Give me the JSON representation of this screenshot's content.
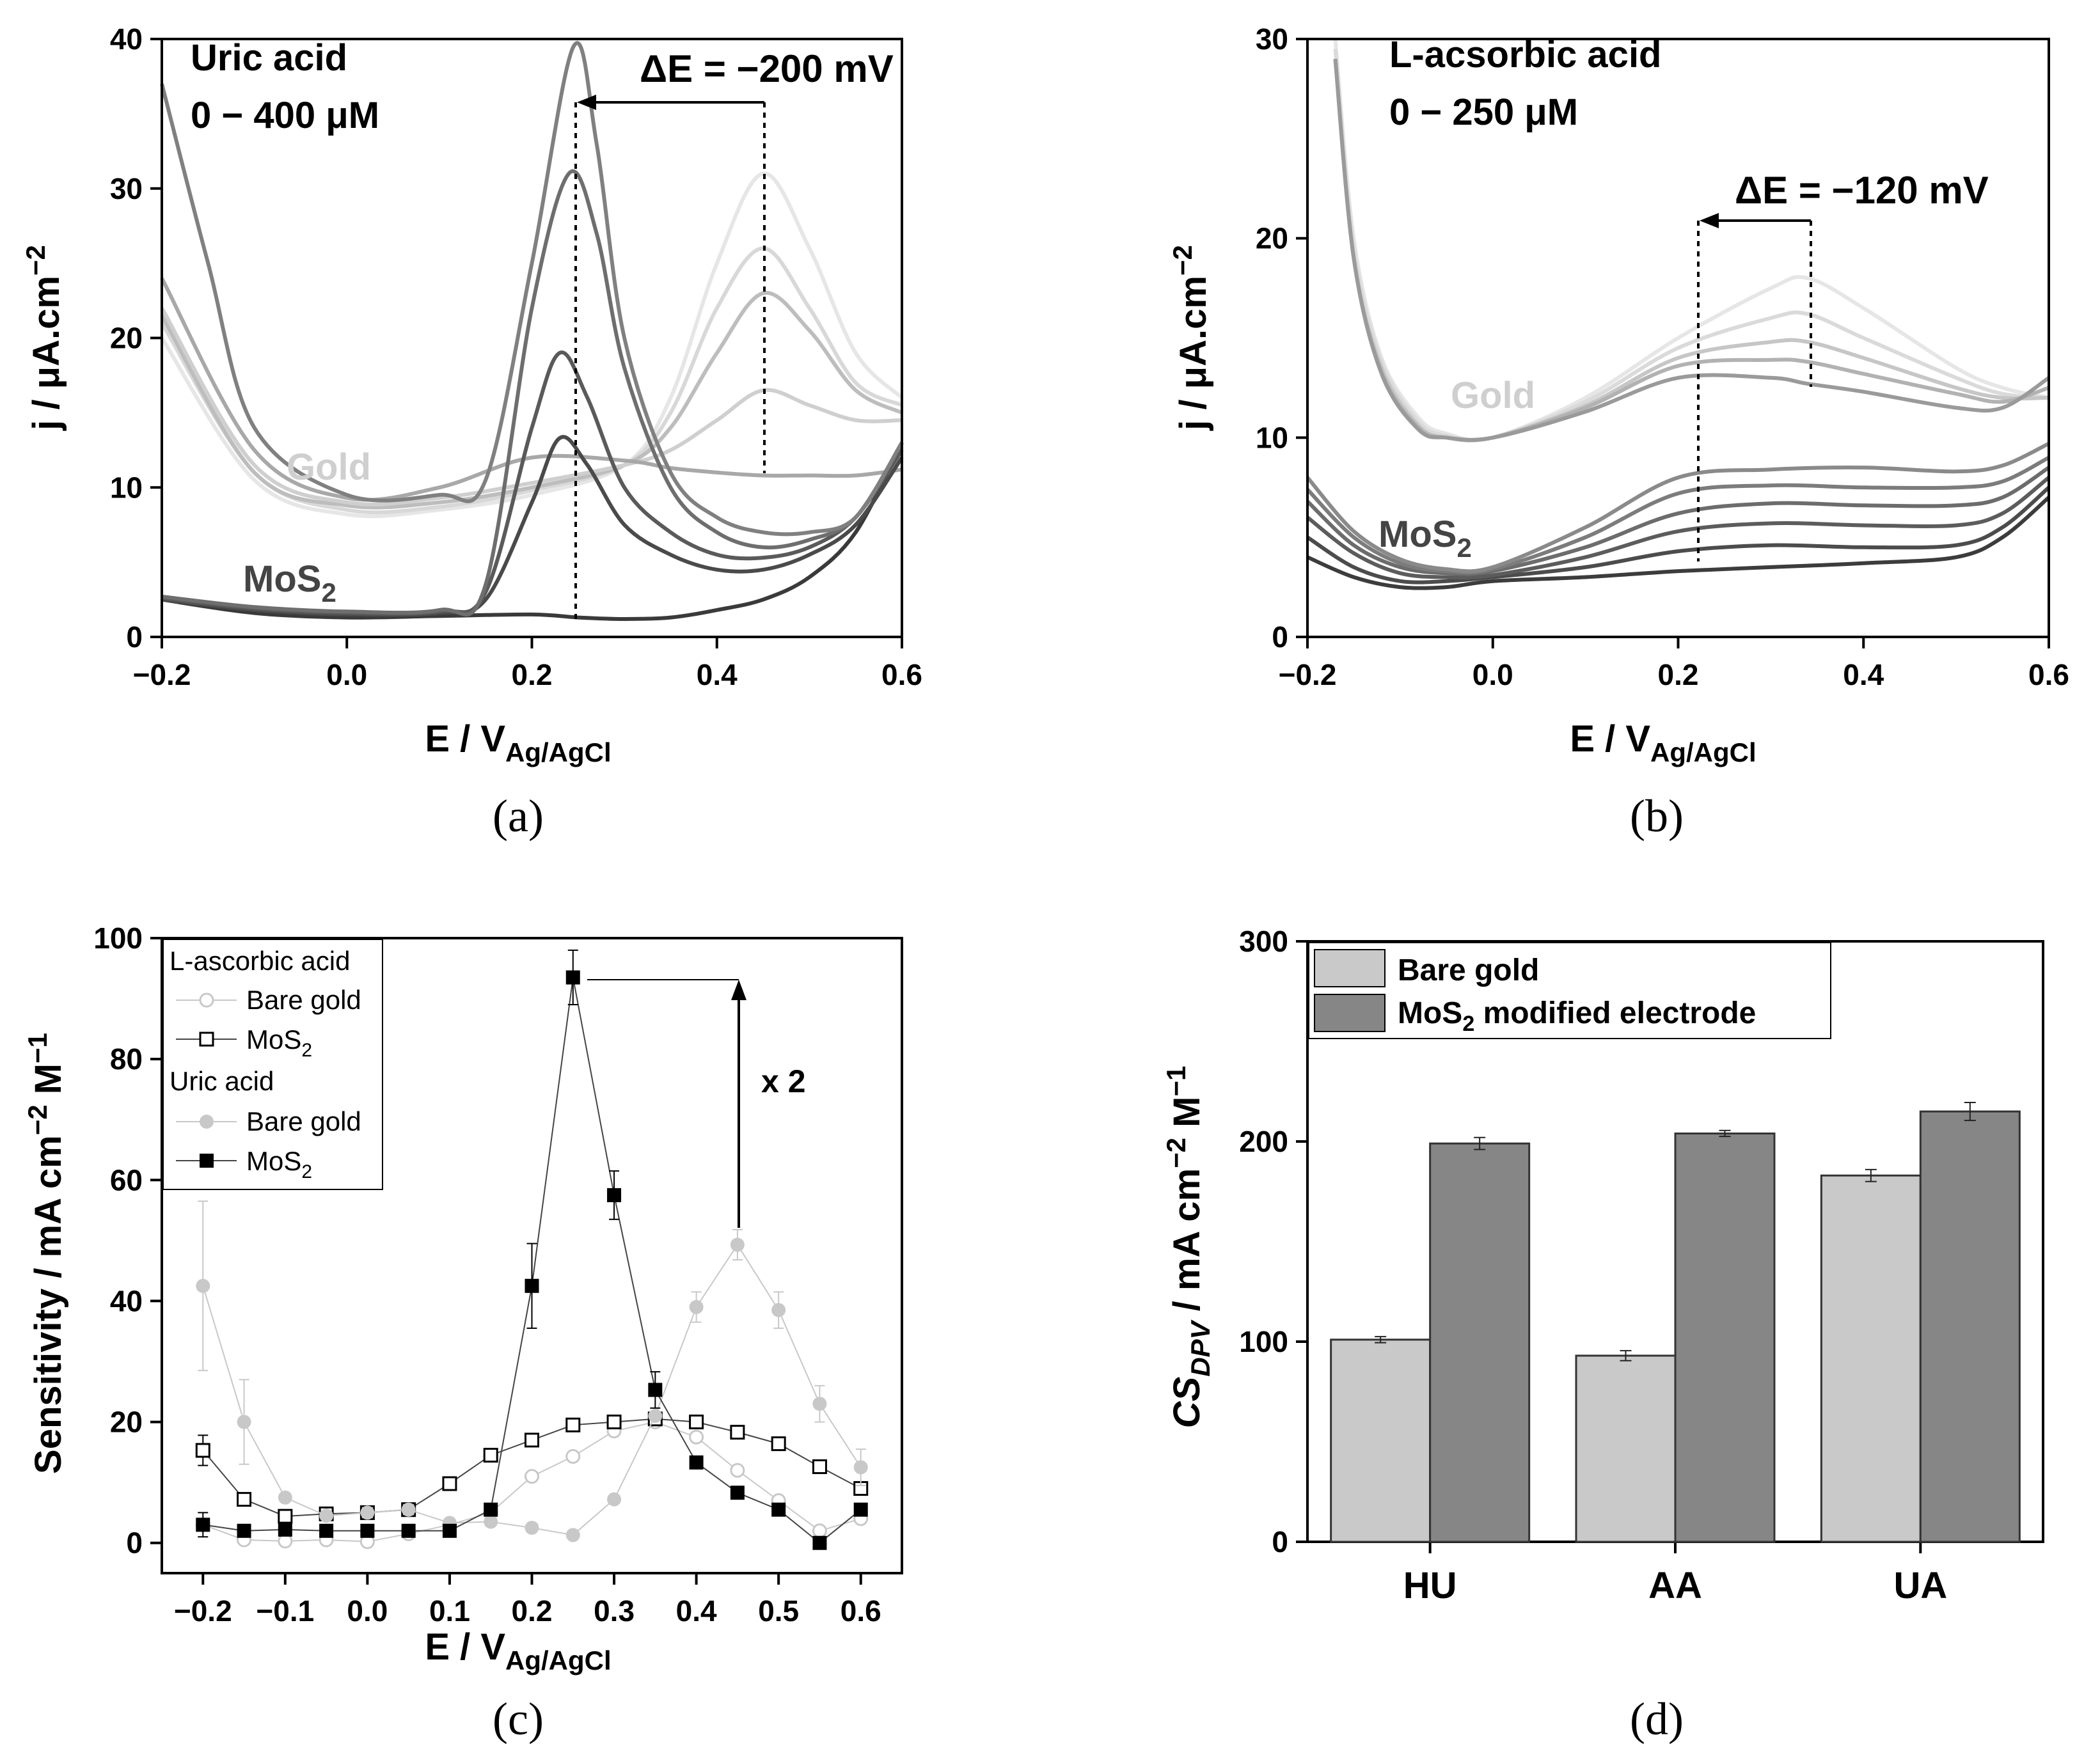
{
  "chart_data": [
    {
      "panel": "(a)",
      "type": "line",
      "ylabel": "j / μA.cm",
      "ylabel_sup": "−2",
      "xlabel": "E / V",
      "xlabel_sub": "Ag/AgCl",
      "xlim": [
        -0.2,
        0.6
      ],
      "ylim": [
        0,
        40
      ],
      "xticks": [
        "−0.2",
        "0.0",
        "0.2",
        "0.4",
        "0.6"
      ],
      "yticks": [
        "0",
        "10",
        "20",
        "30",
        "40"
      ],
      "annotations": {
        "analyte": "Uric acid",
        "range": "0 − 400 μM",
        "delta": "ΔE = −200 mV",
        "gold": "Gold",
        "mos2": "MoS",
        "mos2_sub": "2"
      },
      "series": [
        {
          "name": "Gold 1",
          "group": "gold",
          "color": "#e6e6e6",
          "x": [
            -0.2,
            -0.1,
            0.0,
            0.1,
            0.2,
            0.3,
            0.35,
            0.4,
            0.45,
            0.5,
            0.55,
            0.6
          ],
          "y": [
            20,
            10.5,
            8.2,
            8.5,
            9.5,
            11.5,
            16,
            25,
            31,
            26,
            19,
            16
          ]
        },
        {
          "name": "Gold 2",
          "group": "gold",
          "color": "#d8d8d8",
          "x": [
            -0.2,
            -0.1,
            0.0,
            0.1,
            0.2,
            0.3,
            0.35,
            0.4,
            0.45,
            0.5,
            0.55,
            0.6
          ],
          "y": [
            21,
            11,
            8.5,
            8.7,
            9.8,
            11.5,
            15,
            22,
            26,
            22,
            17,
            15.5
          ]
        },
        {
          "name": "Gold 3",
          "group": "gold",
          "color": "#bdbdbd",
          "x": [
            -0.2,
            -0.1,
            0.0,
            0.1,
            0.2,
            0.3,
            0.35,
            0.4,
            0.45,
            0.5,
            0.55,
            0.6
          ],
          "y": [
            21.5,
            11,
            8.8,
            9,
            10,
            11.5,
            14,
            19,
            23,
            20.5,
            16.5,
            15
          ]
        },
        {
          "name": "Gold 4",
          "group": "gold",
          "color": "#cfcfcf",
          "x": [
            -0.2,
            -0.1,
            0.0,
            0.1,
            0.2,
            0.3,
            0.35,
            0.4,
            0.45,
            0.5,
            0.55,
            0.6
          ],
          "y": [
            22,
            11.5,
            9,
            9.3,
            10.3,
            11.5,
            12.5,
            14.5,
            16.5,
            15.5,
            14.5,
            14.5
          ]
        },
        {
          "name": "Gold 5",
          "group": "gold",
          "color": "#a8a8a8",
          "x": [
            -0.2,
            -0.1,
            0.0,
            0.1,
            0.2,
            0.3,
            0.35,
            0.4,
            0.45,
            0.5,
            0.55,
            0.6
          ],
          "y": [
            24,
            12.5,
            9.3,
            10,
            12,
            11.8,
            11.3,
            11,
            10.8,
            10.8,
            10.8,
            11.2
          ]
        },
        {
          "name": "MoS2 0",
          "group": "mos2",
          "color": "#3a3a3a",
          "x": [
            -0.2,
            -0.1,
            0.0,
            0.1,
            0.2,
            0.25,
            0.3,
            0.35,
            0.4,
            0.45,
            0.5,
            0.55,
            0.6
          ],
          "y": [
            2.5,
            1.6,
            1.3,
            1.4,
            1.5,
            1.3,
            1.2,
            1.3,
            1.8,
            2.5,
            4,
            7,
            13
          ]
        },
        {
          "name": "MoS2 1",
          "group": "mos2",
          "color": "#4a4a4a",
          "x": [
            -0.2,
            -0.1,
            0.0,
            0.1,
            0.15,
            0.2,
            0.23,
            0.26,
            0.3,
            0.35,
            0.4,
            0.45,
            0.5,
            0.55,
            0.6
          ],
          "y": [
            2.5,
            1.8,
            1.5,
            1.6,
            2.5,
            9,
            13.3,
            11.5,
            7.5,
            5.5,
            4.5,
            4.5,
            5.5,
            7.5,
            12
          ]
        },
        {
          "name": "MoS2 2",
          "group": "mos2",
          "color": "#5a5a5a",
          "x": [
            -0.2,
            -0.1,
            0.0,
            0.1,
            0.15,
            0.2,
            0.23,
            0.26,
            0.3,
            0.35,
            0.4,
            0.45,
            0.5,
            0.55,
            0.6
          ],
          "y": [
            2.6,
            1.9,
            1.6,
            1.7,
            3,
            14,
            19,
            16,
            10,
            7,
            5.5,
            5.3,
            6,
            8,
            12.5
          ]
        },
        {
          "name": "MoS2 3",
          "group": "mos2",
          "color": "#6e6e6e",
          "x": [
            -0.2,
            -0.1,
            0.0,
            0.1,
            0.15,
            0.2,
            0.24,
            0.27,
            0.3,
            0.35,
            0.4,
            0.45,
            0.5,
            0.55,
            0.6
          ],
          "y": [
            2.7,
            2,
            1.7,
            1.8,
            3.5,
            22,
            31,
            27,
            18,
            10,
            7,
            6,
            6.5,
            8,
            13
          ]
        },
        {
          "name": "MoS2 4",
          "group": "mos2",
          "color": "#808080",
          "x": [
            -0.2,
            -0.15,
            -0.1,
            0.0,
            0.1,
            0.15,
            0.2,
            0.245,
            0.27,
            0.3,
            0.35,
            0.4,
            0.45,
            0.5,
            0.55,
            0.6
          ],
          "y": [
            37,
            25,
            14,
            9.5,
            9.5,
            10.5,
            25,
            39.5,
            33,
            20,
            11,
            8,
            7,
            7,
            8,
            13
          ]
        }
      ]
    },
    {
      "panel": "(b)",
      "type": "line",
      "ylabel": "j / μA.cm",
      "ylabel_sup": "−2",
      "xlabel": "E / V",
      "xlabel_sub": "Ag/AgCl",
      "xlim": [
        -0.2,
        0.6
      ],
      "ylim": [
        0,
        30
      ],
      "xticks": [
        "−0.2",
        "0.0",
        "0.2",
        "0.4",
        "0.6"
      ],
      "yticks": [
        "0",
        "10",
        "20",
        "30"
      ],
      "annotations": {
        "analyte": "L-acsorbic acid",
        "range": "0 − 250 μM",
        "delta": "ΔE = −120 mV",
        "gold": "Gold",
        "mos2": "MoS",
        "mos2_sub": "2"
      },
      "series": [
        {
          "name": "Gold 1",
          "group": "gold",
          "color": "#e6e6e6",
          "x": [
            -0.17,
            -0.15,
            -0.12,
            -0.08,
            -0.05,
            0.0,
            0.1,
            0.2,
            0.3,
            0.34,
            0.4,
            0.5,
            0.55,
            0.6
          ],
          "y": [
            30,
            20,
            14,
            11,
            10.2,
            10,
            12,
            15,
            17.5,
            18,
            16.5,
            13.5,
            12.5,
            12
          ]
        },
        {
          "name": "Gold 2",
          "group": "gold",
          "color": "#dadada",
          "x": [
            -0.17,
            -0.15,
            -0.12,
            -0.08,
            -0.05,
            0.0,
            0.1,
            0.2,
            0.3,
            0.34,
            0.4,
            0.5,
            0.55,
            0.6
          ],
          "y": [
            29.5,
            19.5,
            13.8,
            10.8,
            10.1,
            10,
            11.8,
            14.5,
            16,
            16.2,
            15,
            13,
            12.2,
            12
          ]
        },
        {
          "name": "Gold 3",
          "group": "gold",
          "color": "#c6c6c6",
          "x": [
            -0.17,
            -0.15,
            -0.12,
            -0.08,
            -0.05,
            0.0,
            0.1,
            0.2,
            0.3,
            0.34,
            0.4,
            0.5,
            0.55,
            0.6
          ],
          "y": [
            29,
            19,
            13.5,
            10.6,
            10,
            10,
            11.6,
            14,
            14.8,
            14.8,
            14,
            12.5,
            12,
            12
          ]
        },
        {
          "name": "Gold 4",
          "group": "gold",
          "color": "#b2b2b2",
          "x": [
            -0.17,
            -0.15,
            -0.12,
            -0.08,
            -0.05,
            0.0,
            0.1,
            0.2,
            0.3,
            0.34,
            0.4,
            0.5,
            0.55,
            0.6
          ],
          "y": [
            29,
            19,
            13.3,
            10.5,
            10,
            10,
            11.5,
            13.6,
            13.9,
            13.8,
            13.2,
            12.2,
            11.8,
            12.5
          ]
        },
        {
          "name": "Gold 5",
          "group": "gold",
          "color": "#9a9a9a",
          "x": [
            -0.17,
            -0.15,
            -0.12,
            -0.08,
            -0.05,
            0.0,
            0.1,
            0.2,
            0.3,
            0.34,
            0.4,
            0.5,
            0.55,
            0.6
          ],
          "y": [
            29,
            19,
            13.2,
            10.4,
            10,
            10,
            11.3,
            13,
            13,
            12.7,
            12.3,
            11.5,
            11.5,
            13
          ]
        },
        {
          "name": "MoS2 1",
          "group": "mos2",
          "color": "#3c3c3c",
          "x": [
            -0.2,
            -0.15,
            -0.1,
            -0.05,
            0.0,
            0.1,
            0.2,
            0.3,
            0.4,
            0.5,
            0.55,
            0.6
          ],
          "y": [
            4,
            3,
            2.5,
            2.5,
            2.8,
            3,
            3.3,
            3.5,
            3.7,
            4,
            5,
            7
          ]
        },
        {
          "name": "MoS2 2",
          "group": "mos2",
          "color": "#4c4c4c",
          "x": [
            -0.2,
            -0.15,
            -0.1,
            -0.05,
            0.0,
            0.1,
            0.2,
            0.3,
            0.4,
            0.5,
            0.55,
            0.6
          ],
          "y": [
            5,
            3.5,
            2.8,
            2.8,
            3,
            3.5,
            4.3,
            4.6,
            4.5,
            4.6,
            5.5,
            7.5
          ]
        },
        {
          "name": "MoS2 3",
          "group": "mos2",
          "color": "#5c5c5c",
          "x": [
            -0.2,
            -0.15,
            -0.1,
            -0.05,
            0.0,
            0.1,
            0.2,
            0.3,
            0.4,
            0.5,
            0.55,
            0.6
          ],
          "y": [
            6,
            4.2,
            3.2,
            3,
            3.1,
            4,
            5.3,
            5.7,
            5.6,
            5.6,
            6.2,
            8
          ]
        },
        {
          "name": "MoS2 4",
          "group": "mos2",
          "color": "#6c6c6c",
          "x": [
            -0.2,
            -0.15,
            -0.1,
            -0.05,
            0.0,
            0.1,
            0.2,
            0.3,
            0.4,
            0.5,
            0.55,
            0.6
          ],
          "y": [
            6.8,
            4.6,
            3.5,
            3.2,
            3.3,
            4.5,
            6.2,
            6.7,
            6.6,
            6.6,
            7,
            8.5
          ]
        },
        {
          "name": "MoS2 5",
          "group": "mos2",
          "color": "#7c7c7c",
          "x": [
            -0.2,
            -0.15,
            -0.1,
            -0.05,
            0.0,
            0.1,
            0.2,
            0.3,
            0.4,
            0.5,
            0.55,
            0.6
          ],
          "y": [
            7.4,
            5,
            3.7,
            3.3,
            3.4,
            5,
            7.2,
            7.6,
            7.5,
            7.5,
            7.8,
            9
          ]
        },
        {
          "name": "MoS2 6",
          "group": "mos2",
          "color": "#8a8a8a",
          "x": [
            -0.2,
            -0.15,
            -0.1,
            -0.05,
            0.0,
            0.1,
            0.2,
            0.3,
            0.4,
            0.5,
            0.55,
            0.6
          ],
          "y": [
            8,
            5.3,
            3.9,
            3.4,
            3.5,
            5.5,
            8,
            8.4,
            8.5,
            8.3,
            8.6,
            9.7
          ]
        }
      ]
    },
    {
      "panel": "(c)",
      "type": "scatter",
      "ylabel": "Sensitivity / mA cm",
      "ylabel_sup1": "−2",
      "ylabel_mid": " M",
      "ylabel_sup2": "−1",
      "xlabel": "E / V",
      "xlabel_sub": "Ag/AgCl",
      "xlim": [
        -0.25,
        0.65
      ],
      "ylim": [
        -5,
        100
      ],
      "xticks": [
        "−0.2",
        "−0.1",
        "0.0",
        "0.1",
        "0.2",
        "0.3",
        "0.4",
        "0.5",
        "0.6"
      ],
      "yticks": [
        "0",
        "20",
        "40",
        "60",
        "80",
        "100"
      ],
      "annotations": {
        "factor": "x 2"
      },
      "legend": {
        "group1": "L-ascorbic acid",
        "group2": "Uric acid",
        "bare": "Bare gold",
        "mos2": "MoS",
        "mos2_sub": "2"
      },
      "x": [
        -0.2,
        -0.15,
        -0.1,
        -0.05,
        0.0,
        0.05,
        0.1,
        0.15,
        0.2,
        0.25,
        0.3,
        0.35,
        0.4,
        0.45,
        0.5,
        0.55,
        0.6
      ],
      "series": [
        {
          "name": "L-ascorbic acid, Bare gold",
          "marker": "open-circle",
          "color": "#c8c8c8",
          "values": [
            3,
            0.5,
            0.3,
            0.5,
            0.2,
            1.5,
            3,
            5,
            11,
            14.3,
            18.5,
            20,
            17.5,
            12,
            7,
            2,
            4
          ],
          "errors": [
            0,
            0,
            0,
            0,
            0,
            0,
            0,
            0,
            0,
            0,
            0,
            0,
            0,
            0,
            0,
            0,
            0
          ]
        },
        {
          "name": "L-ascorbic acid, MoS2",
          "marker": "open-square",
          "color": "#000000",
          "values": [
            15.3,
            7.2,
            4.4,
            4.8,
            5,
            5.5,
            9.8,
            14.5,
            17,
            19.5,
            20,
            20.5,
            20,
            18.3,
            16.4,
            12.6,
            9
          ],
          "errors": [
            2.5,
            0,
            0,
            0,
            0,
            0,
            0,
            0,
            0,
            0,
            0,
            0,
            0,
            0,
            0,
            0,
            0
          ]
        },
        {
          "name": "Uric acid, Bare gold",
          "marker": "filled-circle",
          "color": "#c8c8c8",
          "values": [
            42.5,
            20,
            7.5,
            4.5,
            5,
            5.5,
            3.3,
            3.5,
            2.5,
            1.3,
            7.2,
            21,
            39,
            49.3,
            38.5,
            23,
            12.5
          ],
          "errors": [
            14,
            7,
            0,
            0,
            0,
            0,
            0,
            0,
            0,
            0,
            0,
            0,
            2.5,
            2.5,
            3,
            3,
            3
          ]
        },
        {
          "name": "Uric acid, MoS2",
          "marker": "filled-square",
          "color": "#000000",
          "values": [
            3,
            2,
            2.2,
            2,
            2,
            2,
            2,
            5.5,
            42.5,
            93.5,
            57.5,
            25.3,
            13.3,
            8.3,
            5.5,
            0,
            5.5
          ],
          "errors": [
            2,
            0,
            0,
            0,
            0,
            0,
            0,
            0,
            7,
            4.5,
            4,
            3,
            0,
            0,
            0,
            0,
            0
          ]
        }
      ]
    },
    {
      "panel": "(d)",
      "type": "bar",
      "ylabel": "CS",
      "ylabel_sub": "DPV",
      "ylabel_rest": " / mA cm",
      "ylabel_sup1": "−2",
      "ylabel_mid": " M",
      "ylabel_sup2": "−1",
      "categories": [
        "HU",
        "AA",
        "UA"
      ],
      "ylim": [
        0,
        300
      ],
      "yticks": [
        "0",
        "100",
        "200",
        "300"
      ],
      "legend": {
        "bare": "Bare gold",
        "mos2_pre": "MoS",
        "mos2_sub": "2",
        "mos2_post": " modified electrode"
      },
      "series": [
        {
          "name": "Bare gold",
          "color": "#c9c9c9",
          "values": [
            101,
            93,
            183
          ],
          "errors": [
            1.5,
            2.5,
            3
          ]
        },
        {
          "name": "MoS2 modified electrode",
          "color": "#868686",
          "values": [
            199,
            204,
            215
          ],
          "errors": [
            3,
            1.5,
            4.5
          ]
        }
      ]
    }
  ],
  "panel_labels": [
    "(a)",
    "(b)",
    "(c)",
    "(d)"
  ]
}
